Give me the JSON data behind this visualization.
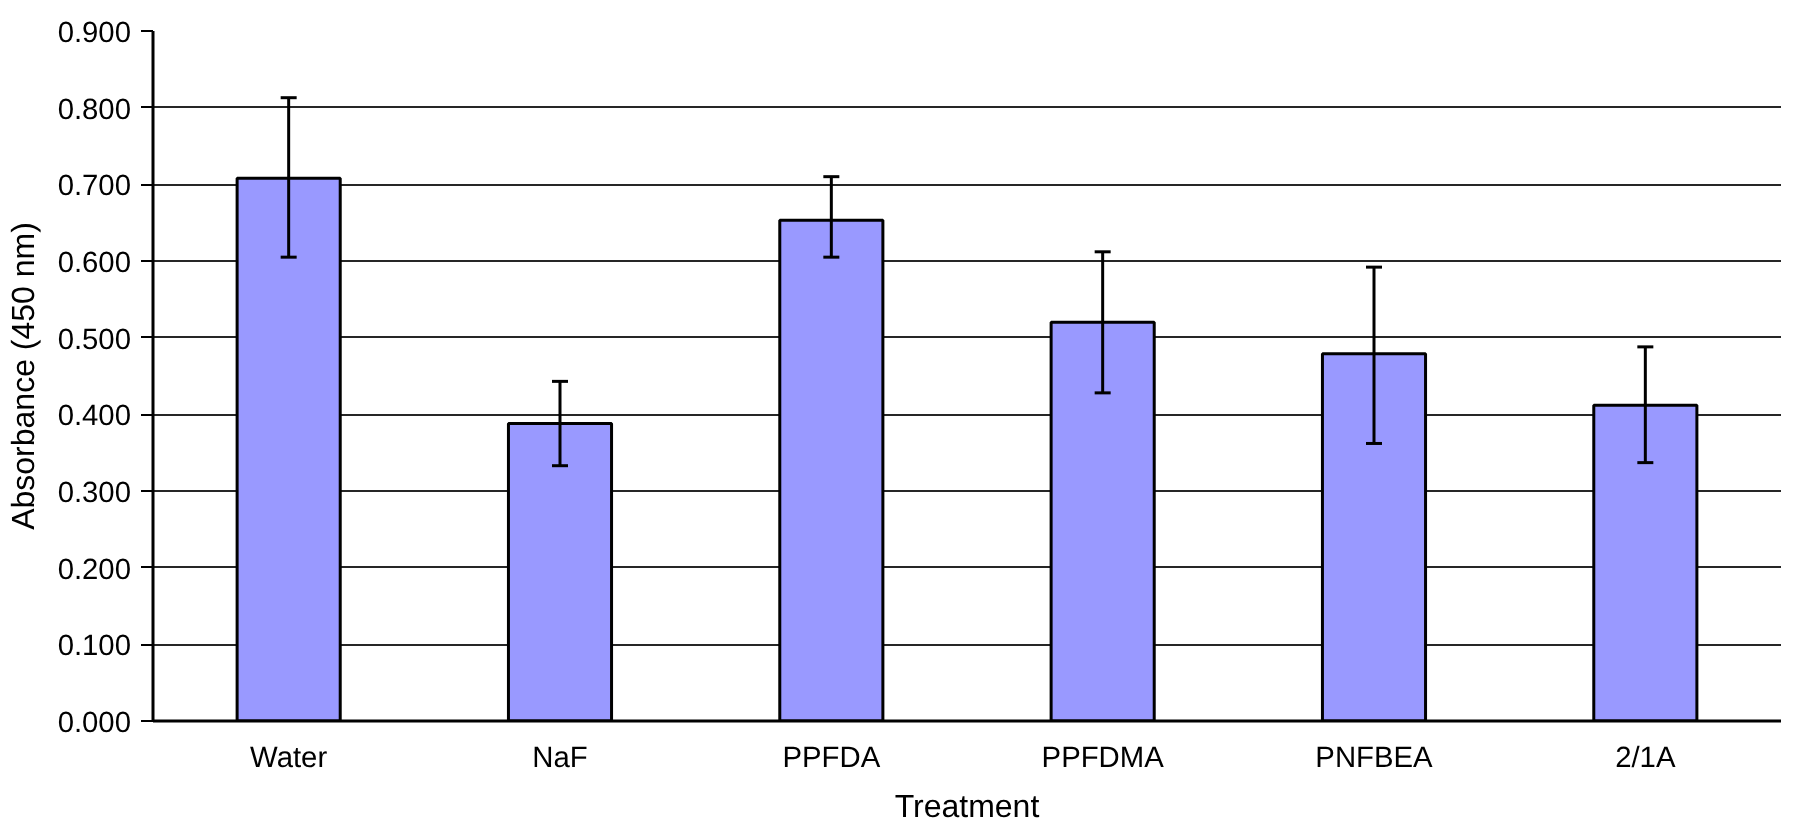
{
  "chart_data": {
    "type": "bar",
    "xlabel": "Treatment",
    "ylabel": "Absorbance (450 nm)",
    "categories": [
      "Water",
      "NaF",
      "PPFDA",
      "PPFDMA",
      "PNFBEA",
      "2/1A"
    ],
    "values": [
      0.708,
      0.388,
      0.653,
      0.52,
      0.479,
      0.412
    ],
    "errors": [
      [
        0.605,
        0.813
      ],
      [
        0.333,
        0.443
      ],
      [
        0.605,
        0.71
      ],
      [
        0.428,
        0.612
      ],
      [
        0.362,
        0.592
      ],
      [
        0.337,
        0.488
      ]
    ],
    "color": "#9999ff",
    "ylim": [
      0,
      0.9
    ],
    "yticks": [
      {
        "value": 0,
        "label": "0.000"
      },
      {
        "value": 0.1,
        "label": "0.100"
      },
      {
        "value": 0.2,
        "label": "0.200"
      },
      {
        "value": 0.3,
        "label": "0.300"
      },
      {
        "value": 0.4,
        "label": "0.400"
      },
      {
        "value": 0.5,
        "label": "0.500"
      },
      {
        "value": 0.6,
        "label": "0.600"
      },
      {
        "value": 0.7,
        "label": "0.700"
      },
      {
        "value": 0.8,
        "label": "0.800"
      },
      {
        "value": 0.9,
        "label": "0.900"
      }
    ],
    "grid": "y"
  }
}
